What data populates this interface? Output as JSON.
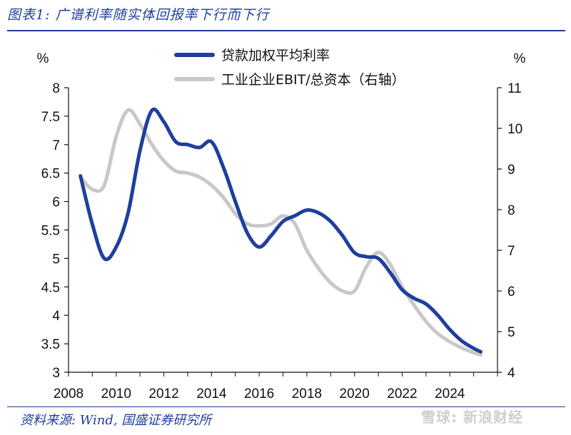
{
  "header": {
    "title": "图表1: 广谱利率随实体回报率下行而下行"
  },
  "footer": {
    "source": "资料来源: Wind, 国盛证券研究所",
    "watermark": "雪球: 新浪财经"
  },
  "chart_data": {
    "type": "line",
    "title": "广谱利率随实体回报率下行而下行",
    "left_unit": "%",
    "right_unit": "%",
    "xlim": [
      2008,
      2026
    ],
    "xticks": [
      "2008",
      "2010",
      "2012",
      "2014",
      "2016",
      "2018",
      "2020",
      "2022",
      "2024"
    ],
    "ylim_left": [
      3,
      8
    ],
    "yticks_left": [
      "3",
      "3.5",
      "4",
      "4.5",
      "5",
      "5.5",
      "6",
      "6.5",
      "7",
      "7.5",
      "8"
    ],
    "ylim_right": [
      4,
      11
    ],
    "yticks_right": [
      "4",
      "5",
      "6",
      "7",
      "8",
      "9",
      "10",
      "11"
    ],
    "series": [
      {
        "name": "贷款加权平均利率",
        "axis": "left",
        "color": "#1f3f9c",
        "x": [
          2008.5,
          2009.0,
          2009.5,
          2010.0,
          2010.5,
          2011.0,
          2011.5,
          2012.0,
          2012.5,
          2013.0,
          2013.5,
          2014.0,
          2014.5,
          2015.0,
          2015.5,
          2016.0,
          2016.5,
          2017.0,
          2017.5,
          2018.0,
          2018.5,
          2019.0,
          2019.5,
          2020.0,
          2020.5,
          2021.0,
          2021.5,
          2022.0,
          2022.5,
          2023.0,
          2023.5,
          2024.0,
          2024.5,
          2025.0,
          2025.3
        ],
        "y": [
          6.45,
          5.6,
          5.0,
          5.2,
          5.8,
          6.9,
          7.6,
          7.4,
          7.05,
          7.0,
          6.95,
          7.05,
          6.6,
          6.0,
          5.45,
          5.2,
          5.4,
          5.65,
          5.75,
          5.85,
          5.8,
          5.65,
          5.4,
          5.1,
          5.03,
          5.0,
          4.75,
          4.45,
          4.3,
          4.2,
          4.0,
          3.75,
          3.55,
          3.42,
          3.36
        ]
      },
      {
        "name": "工业企业EBIT/总资本（右轴）",
        "axis": "right",
        "color": "#c8c8c8",
        "x": [
          2008.5,
          2009.0,
          2009.5,
          2010.0,
          2010.5,
          2011.0,
          2011.5,
          2012.0,
          2012.5,
          2013.0,
          2013.5,
          2014.0,
          2014.5,
          2015.0,
          2015.5,
          2016.0,
          2016.5,
          2017.0,
          2017.5,
          2018.0,
          2018.5,
          2019.0,
          2019.5,
          2020.0,
          2020.5,
          2021.0,
          2021.5,
          2022.0,
          2022.5,
          2023.0,
          2023.5,
          2024.0,
          2024.5,
          2025.0,
          2025.3
        ],
        "y": [
          8.8,
          8.5,
          8.6,
          9.8,
          10.45,
          10.1,
          9.6,
          9.2,
          8.95,
          8.9,
          8.8,
          8.6,
          8.3,
          7.9,
          7.65,
          7.6,
          7.65,
          7.85,
          7.65,
          7.0,
          6.55,
          6.2,
          6.0,
          6.0,
          6.6,
          6.95,
          6.65,
          6.1,
          5.65,
          5.25,
          4.95,
          4.75,
          4.6,
          4.48,
          4.43
        ]
      }
    ]
  }
}
